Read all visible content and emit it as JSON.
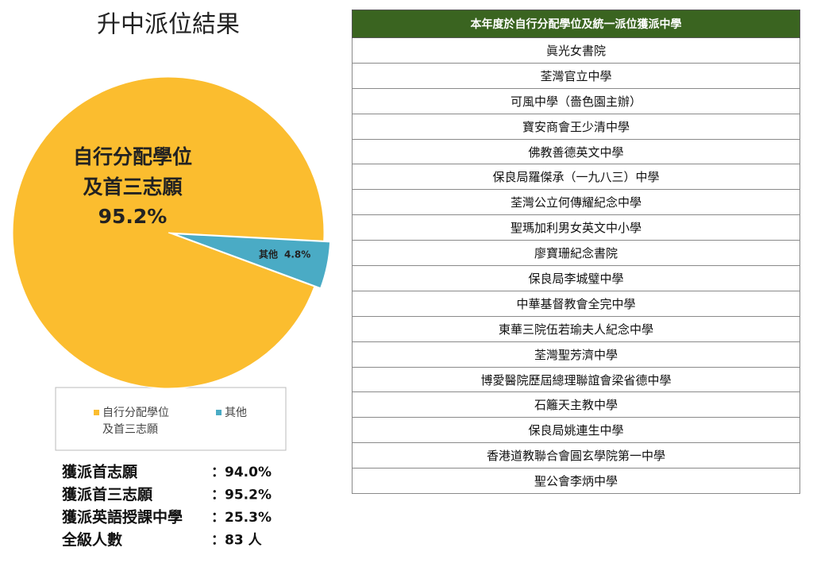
{
  "chart_data": {
    "type": "pie",
    "title": "升中派位結果",
    "categories": [
      "自行分配學位\n及首三志願",
      "其他"
    ],
    "values": [
      95.2,
      4.8
    ],
    "value_labels": [
      "95.2%",
      "4.8%"
    ],
    "colors": [
      "#fbbd2f",
      "#4aabc5"
    ]
  },
  "stats": [
    [
      "獲派首志願",
      "：94.0%"
    ],
    [
      "獲派首三志願",
      "：95.2%"
    ],
    [
      "獲派英語授課中學",
      "：25.3%"
    ],
    [
      "全級人數",
      "：83 人"
    ]
  ],
  "table": {
    "header": "本年度於自行分配學位及統一派位獲派中學",
    "rows": [
      "眞光女書院",
      "荃灣官立中學",
      "可風中學（嗇色園主辦）",
      "寶安商會王少清中學",
      "佛教善德英文中學",
      "保良局羅傑承（一九八三）中學",
      "荃灣公立何傳耀紀念中學",
      "聖瑪加利男女英文中小學",
      "廖寶珊紀念書院",
      "保良局李城璧中學",
      "中華基督教會全完中學",
      "東華三院伍若瑜夫人紀念中學",
      "荃灣聖芳濟中學",
      "博愛醫院歷屆總理聯誼會梁省德中學",
      "石籬天主教中學",
      "保良局姚連生中學",
      "香港道教聯合會圓玄學院第一中學",
      "聖公會李炳中學"
    ]
  }
}
